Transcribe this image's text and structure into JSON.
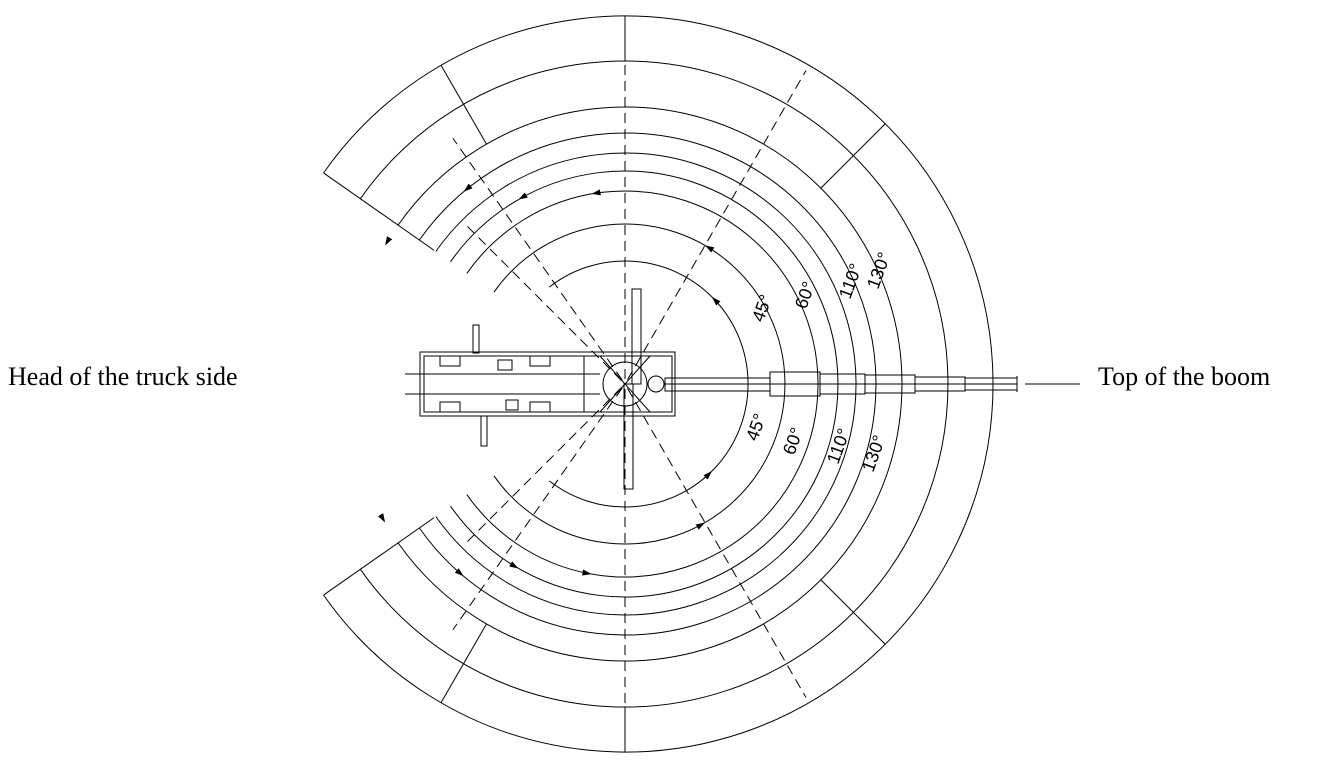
{
  "labels": {
    "head_side": "Head of the truck side",
    "boom_top": "Top of the boom"
  },
  "angle_labels": [
    "45°",
    "60°",
    "110°",
    "130°"
  ],
  "diagram": {
    "line_color": "#000000",
    "background": "#ffffff"
  }
}
